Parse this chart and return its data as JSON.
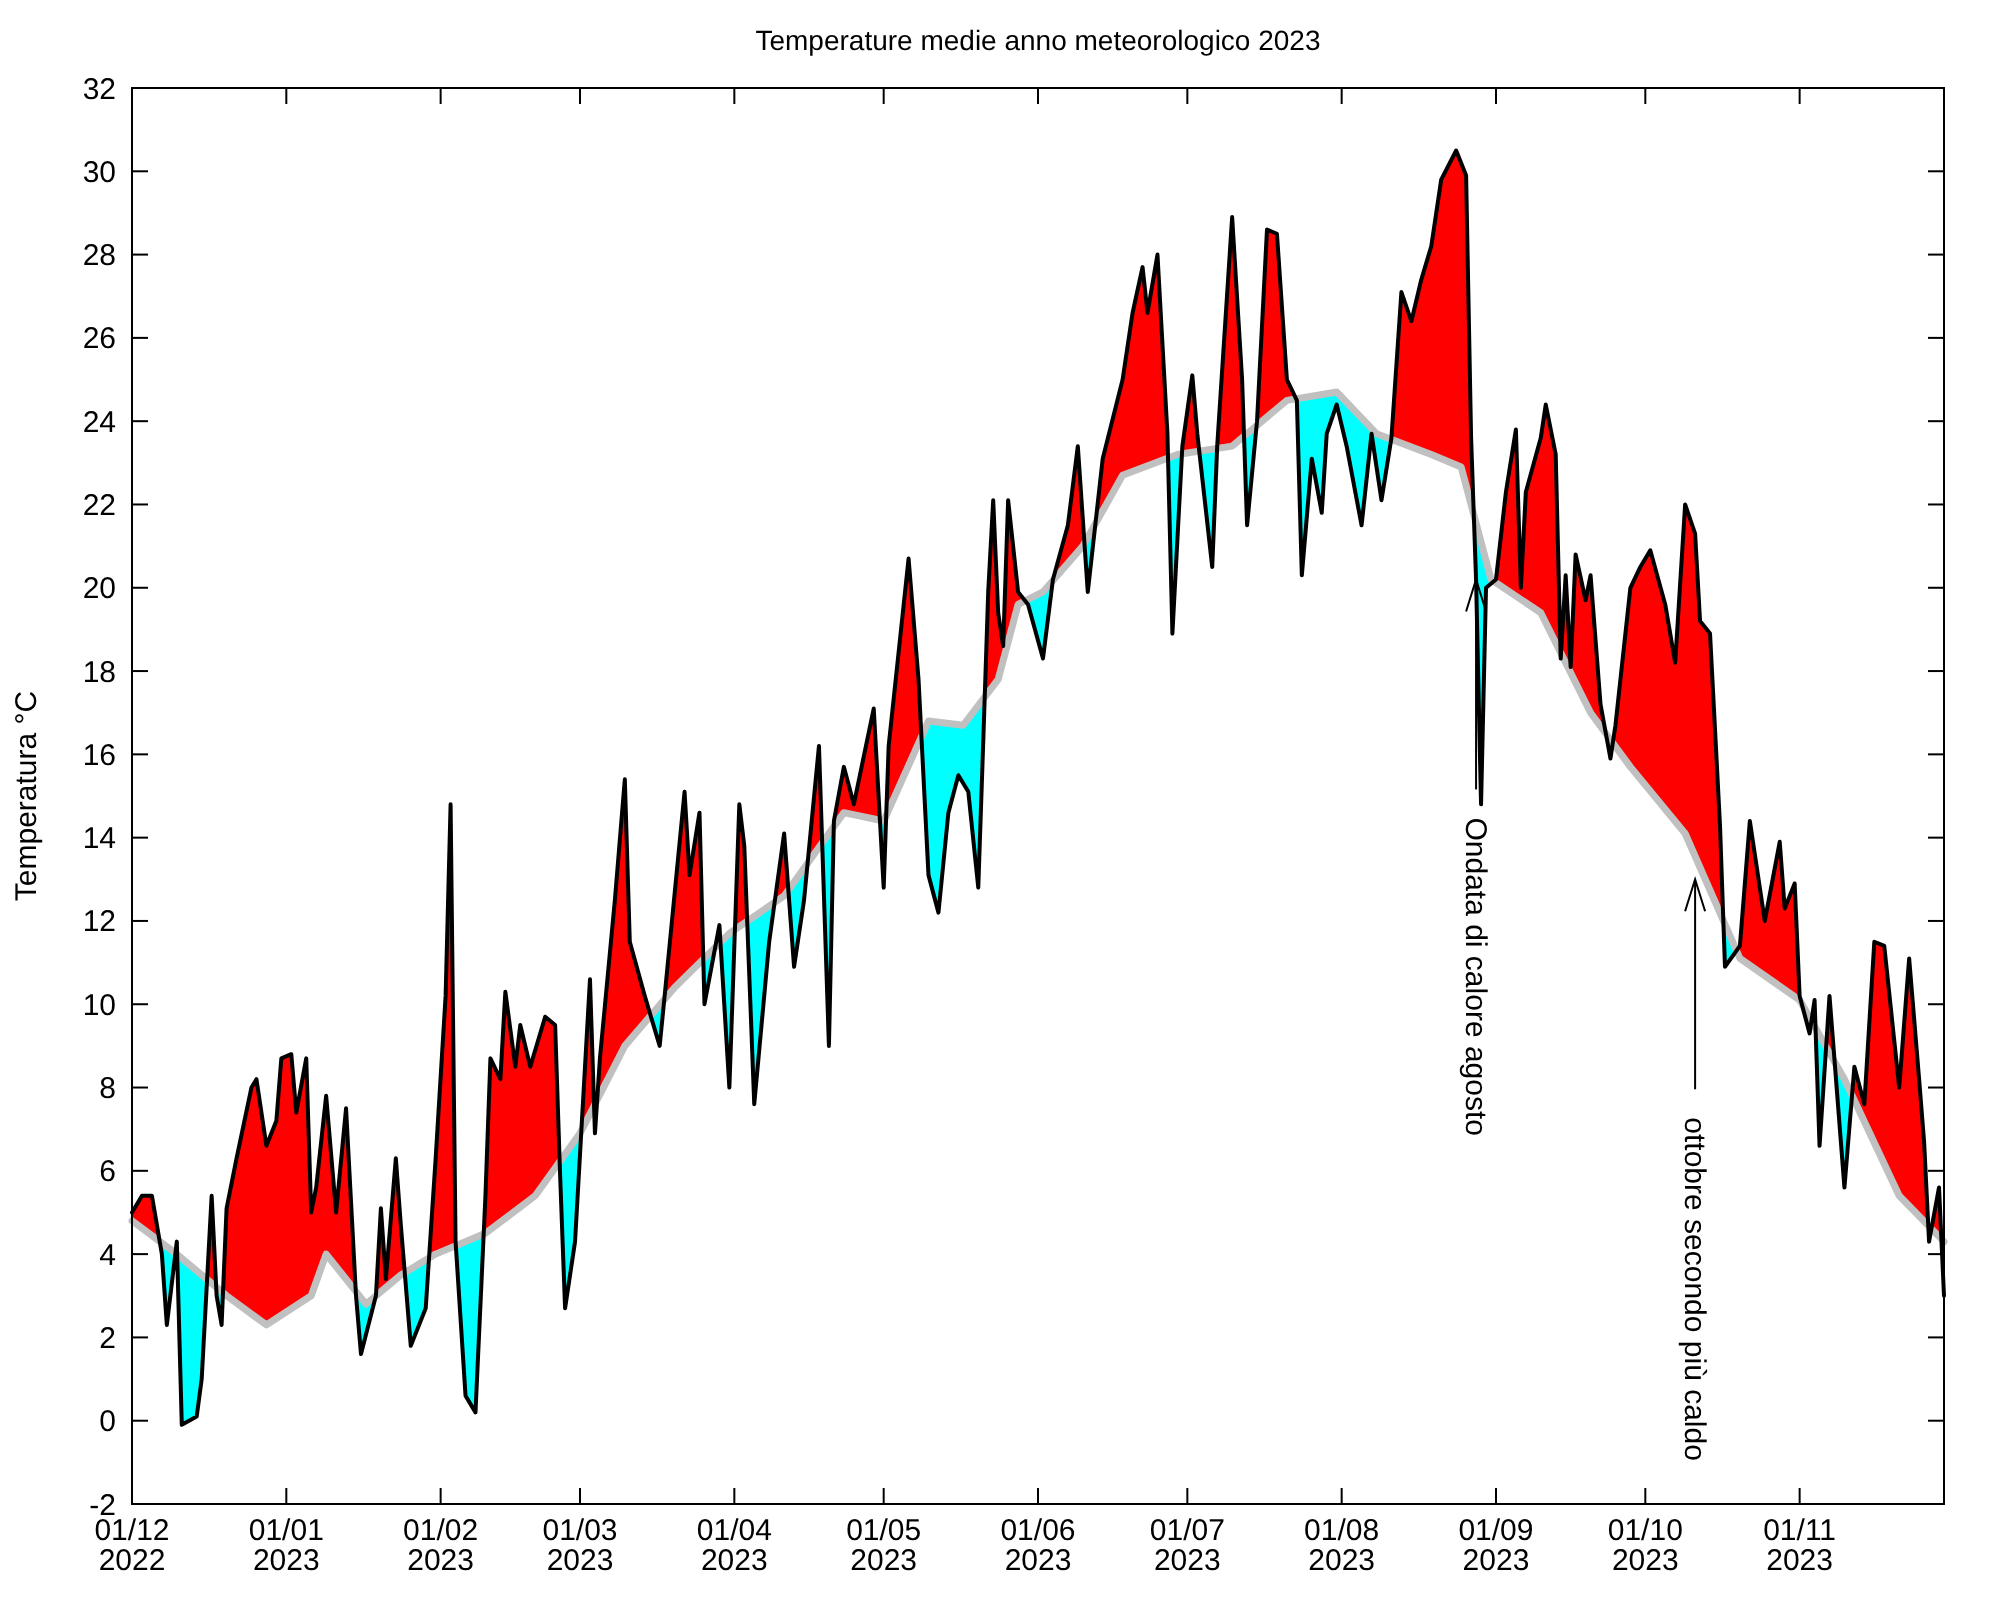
{
  "chart_data": {
    "type": "line",
    "title": "Temperature medie anno meteorologico 2023",
    "ylabel": "Temperatura °C",
    "xlim": [
      "2022-12-01",
      "2023-11-30"
    ],
    "xticks": [
      {
        "value": "2022-12-01",
        "label": "01/12\n2022"
      },
      {
        "value": "2023-01-01",
        "label": "01/01\n2023"
      },
      {
        "value": "2023-02-01",
        "label": "01/02\n2023"
      },
      {
        "value": "2023-03-01",
        "label": "01/03\n2023"
      },
      {
        "value": "2023-04-01",
        "label": "01/04\n2023"
      },
      {
        "value": "2023-05-01",
        "label": "01/05\n2023"
      },
      {
        "value": "2023-06-01",
        "label": "01/06\n2023"
      },
      {
        "value": "2023-07-01",
        "label": "01/07\n2023"
      },
      {
        "value": "2023-08-01",
        "label": "01/08\n2023"
      },
      {
        "value": "2023-09-01",
        "label": "01/09\n2023"
      },
      {
        "value": "2023-10-01",
        "label": "01/10\n2023"
      },
      {
        "value": "2023-11-01",
        "label": "01/11\n2023"
      }
    ],
    "ylim": [
      -2,
      32
    ],
    "yticks": [
      -2,
      0,
      2,
      4,
      6,
      8,
      10,
      12,
      14,
      16,
      18,
      20,
      22,
      24,
      26,
      28,
      30,
      32
    ],
    "grid": false,
    "marker": "none",
    "line_style": "solid",
    "series": [
      {
        "color": "#000000",
        "x": [
          "2022-12-01",
          "2022-12-03",
          "2022-12-05",
          "2022-12-07",
          "2022-12-08",
          "2022-12-10",
          "2022-12-11",
          "2022-12-14",
          "2022-12-15",
          "2022-12-16",
          "2022-12-17",
          "2022-12-18",
          "2022-12-19",
          "2022-12-20",
          "2022-12-22",
          "2022-12-25",
          "2022-12-26",
          "2022-12-28",
          "2022-12-30",
          "2022-12-31",
          "2023-01-02",
          "2023-01-03",
          "2023-01-05",
          "2023-01-06",
          "2023-01-07",
          "2023-01-09",
          "2023-01-11",
          "2023-01-13",
          "2023-01-15",
          "2023-01-16",
          "2023-01-19",
          "2023-01-20",
          "2023-01-21",
          "2023-01-23",
          "2023-01-24",
          "2023-01-26",
          "2023-01-29",
          "2023-01-31",
          "2023-02-02",
          "2023-02-03",
          "2023-02-04",
          "2023-02-06",
          "2023-02-08",
          "2023-02-10",
          "2023-02-11",
          "2023-02-13",
          "2023-02-14",
          "2023-02-16",
          "2023-02-17",
          "2023-02-19",
          "2023-02-22",
          "2023-02-24",
          "2023-02-25",
          "2023-02-26",
          "2023-02-28",
          "2023-03-03",
          "2023-03-04",
          "2023-03-05",
          "2023-03-08",
          "2023-03-10",
          "2023-03-11",
          "2023-03-14",
          "2023-03-17",
          "2023-03-18",
          "2023-03-22",
          "2023-03-23",
          "2023-03-25",
          "2023-03-26",
          "2023-03-29",
          "2023-03-31",
          "2023-04-02",
          "2023-04-03",
          "2023-04-05",
          "2023-04-08",
          "2023-04-11",
          "2023-04-13",
          "2023-04-15",
          "2023-04-18",
          "2023-04-20",
          "2023-04-21",
          "2023-04-23",
          "2023-04-25",
          "2023-04-29",
          "2023-05-01",
          "2023-05-02",
          "2023-05-06",
          "2023-05-08",
          "2023-05-10",
          "2023-05-12",
          "2023-05-14",
          "2023-05-16",
          "2023-05-18",
          "2023-05-20",
          "2023-05-21",
          "2023-05-22",
          "2023-05-23",
          "2023-05-24",
          "2023-05-25",
          "2023-05-26",
          "2023-05-28",
          "2023-05-30",
          "2023-06-02",
          "2023-06-04",
          "2023-06-07",
          "2023-06-09",
          "2023-06-11",
          "2023-06-14",
          "2023-06-18",
          "2023-06-20",
          "2023-06-22",
          "2023-06-23",
          "2023-06-25",
          "2023-06-27",
          "2023-06-28",
          "2023-06-30",
          "2023-07-02",
          "2023-07-03",
          "2023-07-06",
          "2023-07-07",
          "2023-07-10",
          "2023-07-12",
          "2023-07-13",
          "2023-07-15",
          "2023-07-17",
          "2023-07-19",
          "2023-07-21",
          "2023-07-23",
          "2023-07-24",
          "2023-07-26",
          "2023-07-28",
          "2023-07-29",
          "2023-07-31",
          "2023-08-02",
          "2023-08-05",
          "2023-08-07",
          "2023-08-09",
          "2023-08-11",
          "2023-08-13",
          "2023-08-15",
          "2023-08-17",
          "2023-08-19",
          "2023-08-21",
          "2023-08-24",
          "2023-08-26",
          "2023-08-27",
          "2023-08-28",
          "2023-08-29",
          "2023-08-30",
          "2023-09-01",
          "2023-09-03",
          "2023-09-05",
          "2023-09-06",
          "2023-09-07",
          "2023-09-10",
          "2023-09-11",
          "2023-09-13",
          "2023-09-14",
          "2023-09-15",
          "2023-09-16",
          "2023-09-17",
          "2023-09-19",
          "2023-09-20",
          "2023-09-22",
          "2023-09-24",
          "2023-09-25",
          "2023-09-28",
          "2023-09-30",
          "2023-10-02",
          "2023-10-05",
          "2023-10-07",
          "2023-10-09",
          "2023-10-11",
          "2023-10-12",
          "2023-10-14",
          "2023-10-16",
          "2023-10-17",
          "2023-10-20",
          "2023-10-22",
          "2023-10-25",
          "2023-10-28",
          "2023-10-29",
          "2023-10-31",
          "2023-11-01",
          "2023-11-03",
          "2023-11-04",
          "2023-11-05",
          "2023-11-07",
          "2023-11-10",
          "2023-11-12",
          "2023-11-14",
          "2023-11-16",
          "2023-11-18",
          "2023-11-21",
          "2023-11-23",
          "2023-11-25",
          "2023-11-26",
          "2023-11-27",
          "2023-11-29",
          "2023-11-30"
        ],
        "values": [
          5.0,
          5.4,
          5.4,
          4.0,
          2.3,
          4.3,
          -0.1,
          0.1,
          1.0,
          3.2,
          5.4,
          3.0,
          2.3,
          5.1,
          6.3,
          8.0,
          8.2,
          6.6,
          7.2,
          8.7,
          8.8,
          7.4,
          8.7,
          5.0,
          5.6,
          7.8,
          5.0,
          7.5,
          3.0,
          1.6,
          3.0,
          5.1,
          3.4,
          6.3,
          4.7,
          1.8,
          2.7,
          6.3,
          10.2,
          14.8,
          4.3,
          0.6,
          0.2,
          5.4,
          8.7,
          8.2,
          10.3,
          8.5,
          9.5,
          8.5,
          9.7,
          9.5,
          5.9,
          2.7,
          4.3,
          10.6,
          6.9,
          8.7,
          12.5,
          15.4,
          11.5,
          10.2,
          9.0,
          10.2,
          15.1,
          13.1,
          14.6,
          10.0,
          11.9,
          8.0,
          14.8,
          13.8,
          7.6,
          11.5,
          14.1,
          10.9,
          12.5,
          16.2,
          9.0,
          14.4,
          15.7,
          14.8,
          17.1,
          12.8,
          16.2,
          20.7,
          17.8,
          13.1,
          12.2,
          14.6,
          15.5,
          15.1,
          12.8,
          16.3,
          19.9,
          22.1,
          19.4,
          18.6,
          22.1,
          19.9,
          19.6,
          18.3,
          20.2,
          21.5,
          23.4,
          19.9,
          23.1,
          25.0,
          26.6,
          27.7,
          26.6,
          28.0,
          23.7,
          18.9,
          23.4,
          25.1,
          23.7,
          20.5,
          23.4,
          28.9,
          25.0,
          21.5,
          24.0,
          28.6,
          28.5,
          25.0,
          24.5,
          20.3,
          23.1,
          21.8,
          23.7,
          24.4,
          23.4,
          21.5,
          23.7,
          22.1,
          23.6,
          27.1,
          26.4,
          27.4,
          28.2,
          29.8,
          30.5,
          29.9,
          23.6,
          20.2,
          14.8,
          20.0,
          20.2,
          22.3,
          23.8,
          20.0,
          22.3,
          23.6,
          24.4,
          23.2,
          18.3,
          20.3,
          18.1,
          20.8,
          19.7,
          20.3,
          17.2,
          15.9,
          16.7,
          20.0,
          20.5,
          20.9,
          19.6,
          18.2,
          22.0,
          21.3,
          19.2,
          18.9,
          14.3,
          10.9,
          11.4,
          14.4,
          12.0,
          13.9,
          12.3,
          12.9,
          10.2,
          9.3,
          10.1,
          6.6,
          10.2,
          5.6,
          8.5,
          7.6,
          11.5,
          11.4,
          8.0,
          11.1,
          8.2,
          6.7,
          4.3,
          5.6,
          3.0
        ]
      },
      {
        "color": "#c0c0c0",
        "x": [
          "2022-12-01",
          "2022-12-10",
          "2022-12-20",
          "2022-12-28",
          "2023-01-06",
          "2023-01-09",
          "2023-01-17",
          "2023-01-24",
          "2023-01-31",
          "2023-02-10",
          "2023-02-20",
          "2023-03-01",
          "2023-03-10",
          "2023-03-20",
          "2023-03-31",
          "2023-04-11",
          "2023-04-23",
          "2023-05-01",
          "2023-05-10",
          "2023-05-17",
          "2023-05-24",
          "2023-05-28",
          "2023-06-02",
          "2023-06-10",
          "2023-06-18",
          "2023-06-29",
          "2023-07-10",
          "2023-07-21",
          "2023-07-31",
          "2023-08-08",
          "2023-08-19",
          "2023-08-25",
          "2023-08-31",
          "2023-09-10",
          "2023-09-20",
          "2023-09-28",
          "2023-10-09",
          "2023-10-20",
          "2023-11-01",
          "2023-11-10",
          "2023-11-21",
          "2023-11-30"
        ],
        "values": [
          4.8,
          4.0,
          3.0,
          2.3,
          3.0,
          4.0,
          2.8,
          3.5,
          4.0,
          4.5,
          5.4,
          6.9,
          9.0,
          10.4,
          11.7,
          12.6,
          14.6,
          14.4,
          16.8,
          16.7,
          17.8,
          19.6,
          19.9,
          21.0,
          22.7,
          23.2,
          23.4,
          24.5,
          24.7,
          23.7,
          23.2,
          22.9,
          20.2,
          19.4,
          17.0,
          15.7,
          14.1,
          11.1,
          10.1,
          8.2,
          5.4,
          4.3
        ]
      }
    ],
    "annotations": [
      {
        "text": "Ondata di calore agosto",
        "x": "2023-08-28",
        "y": 20.2
      },
      {
        "text": "ottobre secondo più caldo",
        "x": "2023-10-11",
        "y": 13.0
      }
    ]
  }
}
